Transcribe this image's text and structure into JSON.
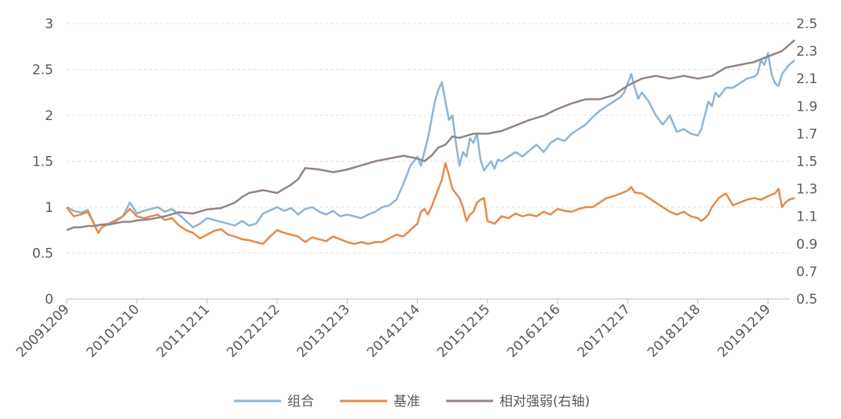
{
  "chart_data": {
    "type": "line",
    "left_axis": {
      "min": 0,
      "max": 3,
      "ticks": [
        "0",
        "0.5",
        "1",
        "1.5",
        "2",
        "2.5",
        "3"
      ],
      "tick_values": [
        0,
        0.5,
        1,
        1.5,
        2,
        2.5,
        3
      ]
    },
    "right_axis": {
      "min": 0.5,
      "max": 2.5,
      "ticks": [
        "0.5",
        "0.7",
        "0.9",
        "1.1",
        "1.3",
        "1.5",
        "1.7",
        "1.9",
        "2.1",
        "2.3",
        "2.5"
      ],
      "tick_values": [
        0.5,
        0.7,
        0.9,
        1.1,
        1.3,
        1.5,
        1.7,
        1.9,
        2.1,
        2.3,
        2.5
      ]
    },
    "x_categories": [
      "20091209",
      "20101210",
      "20111211",
      "20121212",
      "20131213",
      "20141214",
      "20151215",
      "20161216",
      "20171217",
      "20181218",
      "20191219"
    ],
    "x_range": [
      0,
      10.4
    ],
    "grid": "horizontal-dashed",
    "legend_position": "bottom",
    "series": [
      {
        "name": "组合",
        "axis": "left",
        "color": "#8fb4d3",
        "x": [
          0,
          0.1,
          0.2,
          0.3,
          0.4,
          0.6,
          0.7,
          0.8,
          0.9,
          1.0,
          1.1,
          1.2,
          1.3,
          1.4,
          1.5,
          1.6,
          1.7,
          1.8,
          1.9,
          2.0,
          2.1,
          2.2,
          2.3,
          2.4,
          2.5,
          2.6,
          2.7,
          2.8,
          3.0,
          3.1,
          3.2,
          3.3,
          3.4,
          3.5,
          3.6,
          3.7,
          3.8,
          3.9,
          4.0,
          4.1,
          4.2,
          4.3,
          4.4,
          4.5,
          4.6,
          4.7,
          4.8,
          4.9,
          5.0,
          5.05,
          5.1,
          5.15,
          5.2,
          5.25,
          5.3,
          5.35,
          5.4,
          5.45,
          5.5,
          5.55,
          5.6,
          5.65,
          5.7,
          5.75,
          5.8,
          5.85,
          5.9,
          5.95,
          6.0,
          6.05,
          6.1,
          6.15,
          6.2,
          6.3,
          6.4,
          6.5,
          6.6,
          6.7,
          6.8,
          6.9,
          7.0,
          7.1,
          7.2,
          7.3,
          7.4,
          7.5,
          7.6,
          7.7,
          7.8,
          7.9,
          7.95,
          8.0,
          8.05,
          8.1,
          8.15,
          8.2,
          8.3,
          8.4,
          8.5,
          8.6,
          8.7,
          8.8,
          8.9,
          9.0,
          9.05,
          9.1,
          9.15,
          9.2,
          9.25,
          9.3,
          9.4,
          9.5,
          9.6,
          9.7,
          9.8,
          9.85,
          9.9,
          9.95,
          10.0,
          10.05,
          10.1,
          10.15,
          10.2,
          10.25,
          10.3,
          10.35,
          10.38
        ],
        "values": [
          1.0,
          0.96,
          0.94,
          0.97,
          0.8,
          0.82,
          0.86,
          0.9,
          1.05,
          0.93,
          0.96,
          0.98,
          1.0,
          0.95,
          0.98,
          0.92,
          0.85,
          0.78,
          0.82,
          0.88,
          0.86,
          0.84,
          0.82,
          0.8,
          0.85,
          0.8,
          0.82,
          0.93,
          1.0,
          0.96,
          0.99,
          0.92,
          0.98,
          1.0,
          0.95,
          0.92,
          0.96,
          0.9,
          0.92,
          0.9,
          0.88,
          0.92,
          0.95,
          1.0,
          1.02,
          1.08,
          1.25,
          1.45,
          1.55,
          1.45,
          1.6,
          1.75,
          1.95,
          2.15,
          2.28,
          2.36,
          2.15,
          1.95,
          2.0,
          1.7,
          1.45,
          1.6,
          1.55,
          1.75,
          1.7,
          1.8,
          1.52,
          1.4,
          1.45,
          1.5,
          1.42,
          1.52,
          1.5,
          1.55,
          1.6,
          1.55,
          1.62,
          1.68,
          1.6,
          1.7,
          1.75,
          1.72,
          1.8,
          1.85,
          1.9,
          1.98,
          2.05,
          2.1,
          2.15,
          2.2,
          2.25,
          2.35,
          2.45,
          2.3,
          2.18,
          2.25,
          2.15,
          2.0,
          1.9,
          2.0,
          1.82,
          1.85,
          1.8,
          1.78,
          1.85,
          2.0,
          2.15,
          2.1,
          2.25,
          2.2,
          2.3,
          2.3,
          2.35,
          2.4,
          2.42,
          2.45,
          2.6,
          2.55,
          2.68,
          2.45,
          2.35,
          2.32,
          2.45,
          2.5,
          2.55,
          2.58,
          2.6
        ]
      },
      {
        "name": "基准",
        "axis": "left",
        "color": "#e38b4a",
        "x": [
          0,
          0.1,
          0.2,
          0.3,
          0.4,
          0.45,
          0.5,
          0.6,
          0.7,
          0.8,
          0.9,
          1.0,
          1.1,
          1.2,
          1.3,
          1.4,
          1.5,
          1.6,
          1.7,
          1.8,
          1.9,
          2.0,
          2.1,
          2.2,
          2.3,
          2.4,
          2.5,
          2.6,
          2.7,
          2.8,
          2.9,
          3.0,
          3.1,
          3.2,
          3.3,
          3.4,
          3.5,
          3.6,
          3.7,
          3.8,
          3.9,
          4.0,
          4.1,
          4.2,
          4.3,
          4.4,
          4.5,
          4.6,
          4.7,
          4.8,
          4.9,
          5.0,
          5.05,
          5.1,
          5.15,
          5.2,
          5.25,
          5.3,
          5.35,
          5.4,
          5.45,
          5.5,
          5.55,
          5.6,
          5.65,
          5.7,
          5.75,
          5.8,
          5.85,
          5.9,
          5.95,
          6.0,
          6.1,
          6.2,
          6.3,
          6.4,
          6.5,
          6.6,
          6.7,
          6.8,
          6.9,
          7.0,
          7.1,
          7.2,
          7.3,
          7.4,
          7.5,
          7.6,
          7.7,
          7.8,
          7.9,
          8.0,
          8.05,
          8.1,
          8.2,
          8.3,
          8.4,
          8.5,
          8.6,
          8.7,
          8.8,
          8.9,
          9.0,
          9.05,
          9.1,
          9.15,
          9.2,
          9.3,
          9.4,
          9.5,
          9.6,
          9.7,
          9.8,
          9.9,
          10.0,
          10.1,
          10.15,
          10.2,
          10.25,
          10.3,
          10.38
        ],
        "values": [
          1.0,
          0.9,
          0.92,
          0.95,
          0.8,
          0.72,
          0.78,
          0.82,
          0.85,
          0.9,
          0.98,
          0.9,
          0.88,
          0.9,
          0.92,
          0.86,
          0.88,
          0.8,
          0.75,
          0.72,
          0.66,
          0.7,
          0.74,
          0.76,
          0.7,
          0.68,
          0.65,
          0.64,
          0.62,
          0.6,
          0.68,
          0.75,
          0.72,
          0.7,
          0.68,
          0.62,
          0.67,
          0.65,
          0.63,
          0.68,
          0.65,
          0.62,
          0.6,
          0.62,
          0.6,
          0.62,
          0.62,
          0.66,
          0.7,
          0.68,
          0.75,
          0.82,
          0.95,
          0.98,
          0.92,
          1.0,
          1.1,
          1.2,
          1.3,
          1.48,
          1.35,
          1.2,
          1.15,
          1.1,
          1.0,
          0.85,
          0.92,
          0.95,
          1.05,
          1.08,
          1.1,
          0.85,
          0.82,
          0.9,
          0.88,
          0.93,
          0.9,
          0.92,
          0.9,
          0.95,
          0.92,
          0.98,
          0.96,
          0.95,
          0.98,
          1.0,
          1.0,
          1.05,
          1.1,
          1.12,
          1.15,
          1.18,
          1.22,
          1.16,
          1.15,
          1.1,
          1.05,
          1.0,
          0.95,
          0.92,
          0.95,
          0.9,
          0.88,
          0.85,
          0.88,
          0.92,
          1.0,
          1.1,
          1.15,
          1.02,
          1.05,
          1.08,
          1.1,
          1.08,
          1.12,
          1.15,
          1.2,
          1.0,
          1.05,
          1.08,
          1.1
        ]
      },
      {
        "name": "相对强弱(右轴)",
        "axis": "right",
        "color": "#958486",
        "x": [
          0,
          0.1,
          0.2,
          0.3,
          0.4,
          0.5,
          0.6,
          0.7,
          0.8,
          0.9,
          1.0,
          1.2,
          1.4,
          1.6,
          1.8,
          2.0,
          2.2,
          2.4,
          2.5,
          2.6,
          2.8,
          3.0,
          3.1,
          3.2,
          3.3,
          3.4,
          3.6,
          3.8,
          4.0,
          4.2,
          4.4,
          4.6,
          4.8,
          5.0,
          5.1,
          5.2,
          5.3,
          5.4,
          5.5,
          5.6,
          5.8,
          6.0,
          6.2,
          6.4,
          6.6,
          6.8,
          7.0,
          7.2,
          7.4,
          7.6,
          7.8,
          8.0,
          8.2,
          8.4,
          8.6,
          8.8,
          9.0,
          9.2,
          9.4,
          9.6,
          9.8,
          10.0,
          10.2,
          10.38
        ],
        "values": [
          1.0,
          1.02,
          1.02,
          1.03,
          1.03,
          1.04,
          1.04,
          1.05,
          1.06,
          1.06,
          1.07,
          1.08,
          1.1,
          1.13,
          1.12,
          1.15,
          1.16,
          1.2,
          1.24,
          1.27,
          1.29,
          1.27,
          1.3,
          1.33,
          1.37,
          1.45,
          1.44,
          1.42,
          1.44,
          1.47,
          1.5,
          1.52,
          1.54,
          1.52,
          1.5,
          1.54,
          1.6,
          1.62,
          1.68,
          1.67,
          1.7,
          1.7,
          1.72,
          1.76,
          1.8,
          1.83,
          1.88,
          1.92,
          1.95,
          1.95,
          1.98,
          2.05,
          2.1,
          2.12,
          2.1,
          2.12,
          2.1,
          2.12,
          2.18,
          2.2,
          2.22,
          2.26,
          2.3,
          2.38
        ]
      }
    ]
  },
  "legend": [
    {
      "label": "组合",
      "color": "#8fb4d3"
    },
    {
      "label": "基准",
      "color": "#e38b4a"
    },
    {
      "label": "相对强弱(右轴)",
      "color": "#958486"
    }
  ]
}
